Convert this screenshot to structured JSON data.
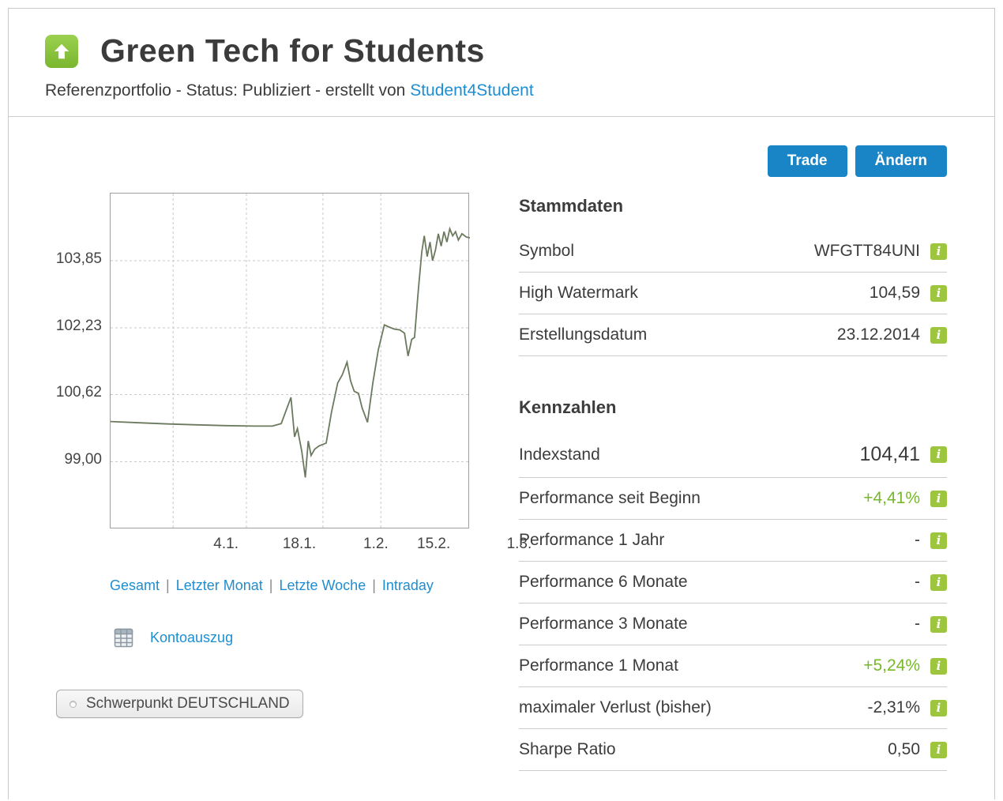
{
  "header": {
    "title": "Green Tech for Students",
    "subtitle_prefix": "Referenzportfolio - Status: Publiziert - erstellt von ",
    "subtitle_link": "Student4Student"
  },
  "actions": {
    "trade_label": "Trade",
    "change_label": "Ändern"
  },
  "info_icon_glyph": "i",
  "period_links": [
    "Gesamt",
    "Letzter Monat",
    "Letzte Woche",
    "Intraday"
  ],
  "period_separator": "|",
  "kontoauszug_label": "Kontoauszug",
  "focus_tag": "Schwerpunkt DEUTSCHLAND",
  "colors": {
    "accent_blue": "#1a85c6",
    "link_blue": "#1d8ed2",
    "positive_green": "#76b82a",
    "badge_green": "#9dc63e",
    "chart_line": "#6b7a5f"
  },
  "stammdaten": {
    "heading": "Stammdaten",
    "rows": [
      {
        "label": "Symbol",
        "value": "WFGTT84UNI",
        "color": "dark"
      },
      {
        "label": "High Watermark",
        "value": "104,59",
        "color": "dark"
      },
      {
        "label": "Erstellungsdatum",
        "value": "23.12.2014",
        "color": "dark"
      }
    ]
  },
  "kennzahlen": {
    "heading": "Kennzahlen",
    "rows": [
      {
        "label": "Indexstand",
        "value": "104,41",
        "color": "dark"
      },
      {
        "label": "Performance seit Beginn",
        "value": "+4,41%",
        "color": "green"
      },
      {
        "label": "Performance 1 Jahr",
        "value": "-",
        "color": "dark"
      },
      {
        "label": "Performance 6 Monate",
        "value": "-",
        "color": "dark"
      },
      {
        "label": "Performance 3 Monate",
        "value": "-",
        "color": "dark"
      },
      {
        "label": "Performance 1 Monat",
        "value": "+5,24%",
        "color": "green"
      },
      {
        "label": "maximaler Verlust (bisher)",
        "value": "-2,31%",
        "color": "dark"
      },
      {
        "label": "Sharpe Ratio",
        "value": "0,50",
        "color": "dark"
      }
    ]
  },
  "chart_data": {
    "type": "line",
    "title": "",
    "xlabel": "",
    "ylabel": "",
    "ylim": [
      97.37,
      105.47
    ],
    "gridlines": [
      103.85,
      102.23,
      100.62,
      99.0
    ],
    "y_tick_labels": [
      "103,85",
      "102,23",
      "100,62",
      "99,00"
    ],
    "x_ticks": [
      {
        "label": "4.1.",
        "f": 0.174,
        "grid": true
      },
      {
        "label": "18.1.",
        "f": 0.378,
        "grid": true
      },
      {
        "label": "1.2.",
        "f": 0.591,
        "grid": true
      },
      {
        "label": "15.2.",
        "f": 0.752,
        "grid": true
      },
      {
        "label": "1.3.",
        "f": 0.99,
        "grid": false
      }
    ],
    "line_color": "#6b7a5f",
    "series": [
      [
        0.0,
        99.97
      ],
      [
        0.08,
        99.94
      ],
      [
        0.16,
        99.91
      ],
      [
        0.24,
        99.89
      ],
      [
        0.32,
        99.87
      ],
      [
        0.4,
        99.86
      ],
      [
        0.45,
        99.86
      ],
      [
        0.475,
        99.92
      ],
      [
        0.502,
        100.55
      ],
      [
        0.512,
        99.6
      ],
      [
        0.52,
        99.8
      ],
      [
        0.532,
        99.25
      ],
      [
        0.542,
        98.62
      ],
      [
        0.55,
        99.5
      ],
      [
        0.558,
        99.15
      ],
      [
        0.568,
        99.3
      ],
      [
        0.58,
        99.38
      ],
      [
        0.6,
        99.45
      ],
      [
        0.615,
        100.2
      ],
      [
        0.632,
        100.9
      ],
      [
        0.645,
        101.1
      ],
      [
        0.658,
        101.4
      ],
      [
        0.668,
        100.95
      ],
      [
        0.678,
        100.7
      ],
      [
        0.69,
        100.65
      ],
      [
        0.7,
        100.3
      ],
      [
        0.715,
        99.95
      ],
      [
        0.73,
        100.9
      ],
      [
        0.745,
        101.7
      ],
      [
        0.762,
        102.3
      ],
      [
        0.775,
        102.25
      ],
      [
        0.79,
        102.2
      ],
      [
        0.805,
        102.18
      ],
      [
        0.818,
        102.1
      ],
      [
        0.828,
        101.55
      ],
      [
        0.838,
        101.95
      ],
      [
        0.846,
        102.0
      ],
      [
        0.856,
        103.1
      ],
      [
        0.866,
        104.05
      ],
      [
        0.873,
        104.45
      ],
      [
        0.881,
        103.95
      ],
      [
        0.889,
        104.3
      ],
      [
        0.896,
        103.85
      ],
      [
        0.904,
        104.1
      ],
      [
        0.912,
        104.5
      ],
      [
        0.92,
        104.2
      ],
      [
        0.928,
        104.55
      ],
      [
        0.936,
        104.3
      ],
      [
        0.944,
        104.62
      ],
      [
        0.952,
        104.45
      ],
      [
        0.96,
        104.55
      ],
      [
        0.968,
        104.35
      ],
      [
        0.978,
        104.5
      ],
      [
        0.99,
        104.42
      ],
      [
        1.0,
        104.4
      ]
    ]
  }
}
